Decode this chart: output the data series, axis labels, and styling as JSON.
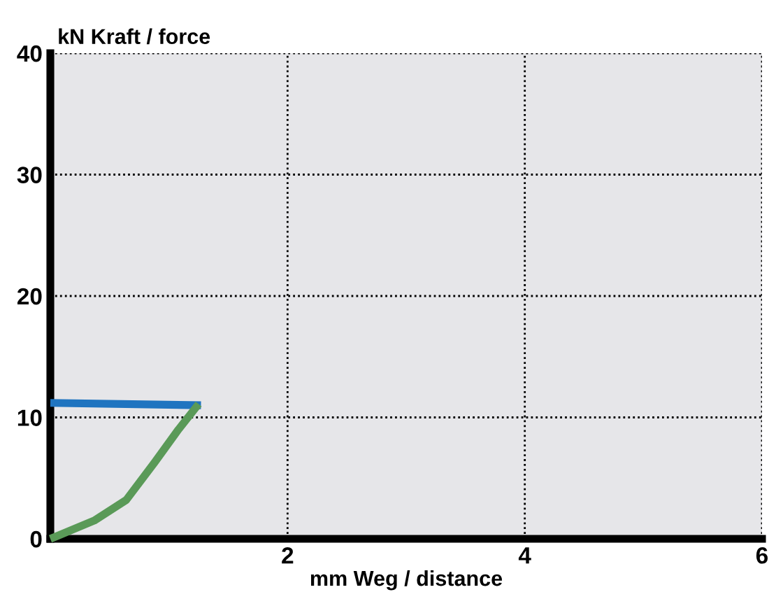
{
  "chart_data": {
    "type": "line",
    "xlabel": "mm Weg / distance",
    "ylabel": "kN Kraft / force",
    "xlim": [
      0,
      6
    ],
    "ylim": [
      0,
      40
    ],
    "xticks": [
      {
        "value": 0,
        "label": null
      },
      2,
      4,
      6
    ],
    "yticks": [
      0,
      10,
      20,
      30,
      40
    ],
    "grid": true,
    "line_style": "solid",
    "marker": "none",
    "series": [
      {
        "color": "#1f74c0",
        "x": [
          0,
          1.27
        ],
        "values": [
          11.2,
          11.0
        ]
      },
      {
        "color": "#5a9a58",
        "x": [
          0,
          0.37,
          0.64,
          0.88,
          1.08,
          1.25
        ],
        "values": [
          0,
          1.5,
          3.2,
          6.3,
          9.0,
          11.1
        ]
      }
    ]
  }
}
